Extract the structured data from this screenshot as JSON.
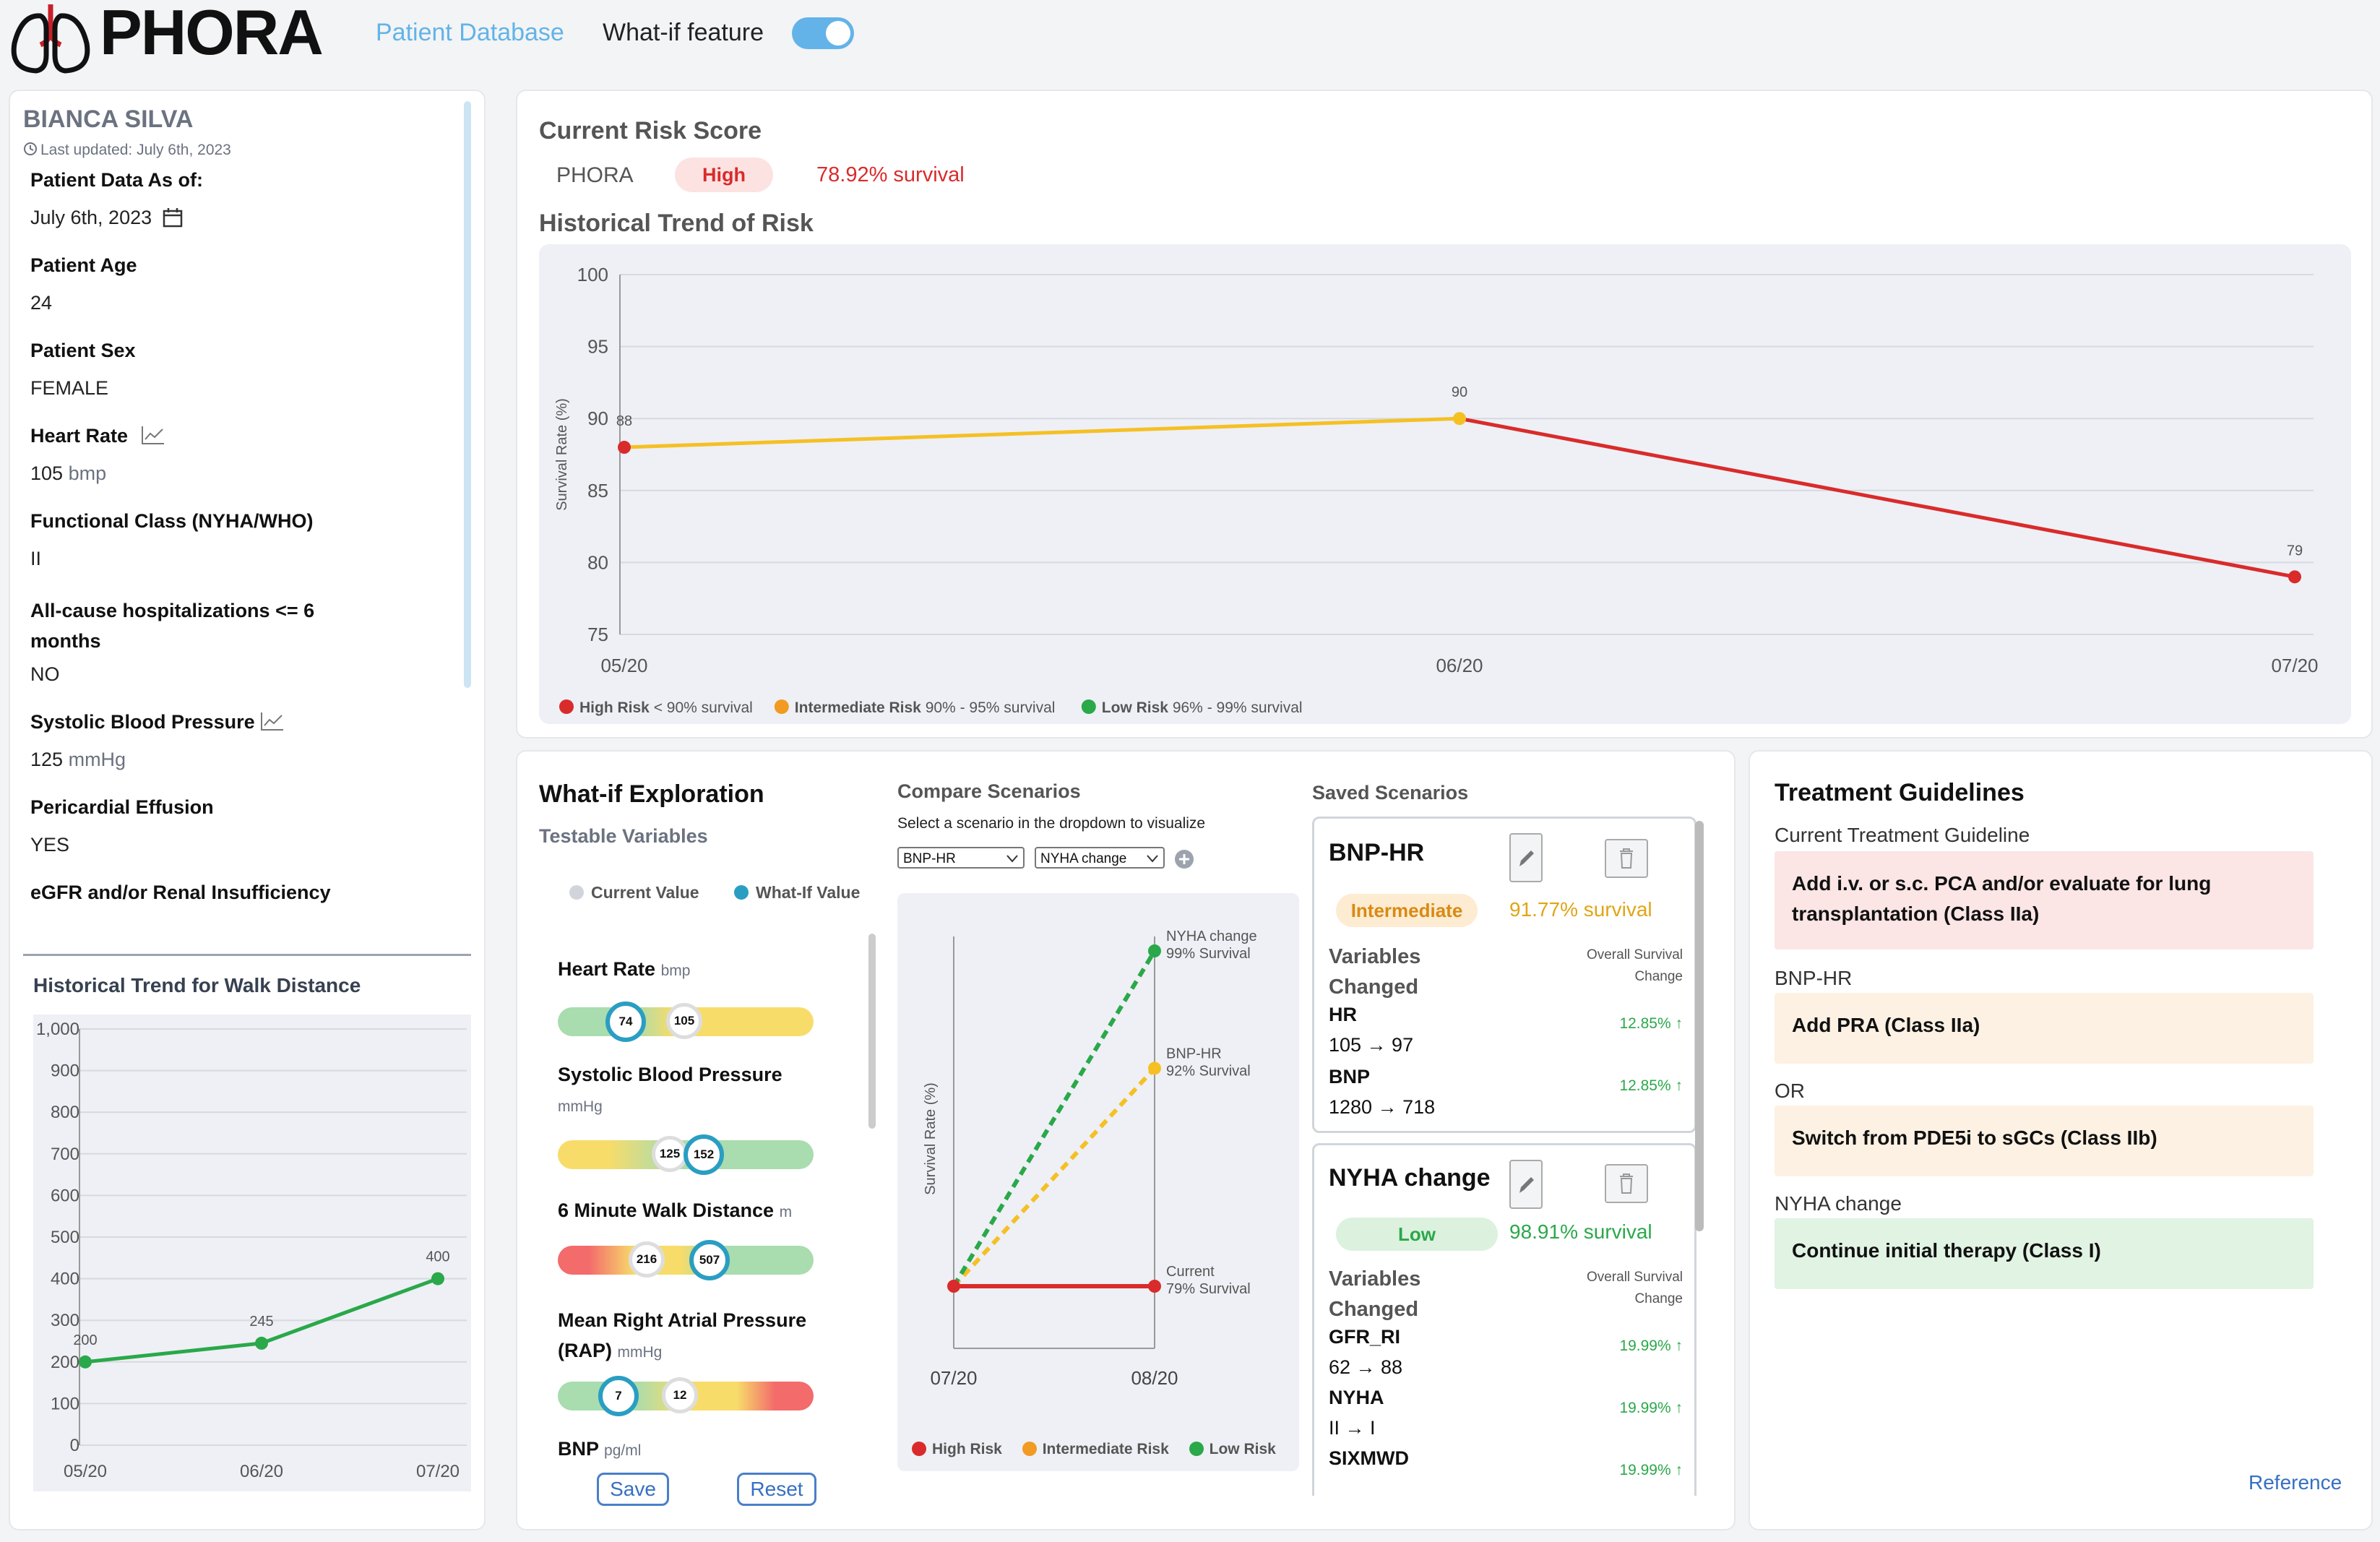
{
  "header": {
    "logo_text": "PHORA",
    "nav_patient_db": "Patient Database",
    "whatif_label": "What-if feature",
    "whatif_enabled": true
  },
  "patient": {
    "name": "BIANCA SILVA",
    "last_updated": "Last updated: July 6th, 2023",
    "fields": {
      "data_as_of_label": "Patient Data As of:",
      "data_as_of_value": "July 6th, 2023",
      "age_label": "Patient Age",
      "age_value": "24",
      "sex_label": "Patient Sex",
      "sex_value": "FEMALE",
      "hr_label": "Heart Rate",
      "hr_value": "105",
      "hr_unit": "bmp",
      "fc_label": "Functional Class (NYHA/WHO)",
      "fc_value": "II",
      "hosp_label": "All-cause hospitalizations <= 6 months",
      "hosp_value": "NO",
      "sbp_label": "Systolic Blood Pressure",
      "sbp_value": "125",
      "sbp_unit": "mmHg",
      "peri_label": "Pericardial Effusion",
      "peri_value": "YES",
      "egfr_label": "eGFR and/or Renal Insufficiency"
    }
  },
  "walk_chart": {
    "title": "Historical Trend for Walk Distance",
    "chart_data": {
      "type": "line",
      "categories": [
        "05/20",
        "06/20",
        "07/20"
      ],
      "values": [
        200,
        245,
        400
      ],
      "ylim": [
        0,
        1000
      ],
      "yticks": [
        "0",
        "100",
        "200",
        "300",
        "400",
        "500",
        "600",
        "700",
        "800",
        "900",
        "1,000"
      ],
      "grid": true,
      "color": "#2aa84a"
    }
  },
  "risk": {
    "title": "Current Risk Score",
    "model": "PHORA",
    "level": "High",
    "survival": "78.92% survival"
  },
  "risk_trend": {
    "title": "Historical Trend of Risk",
    "chart_data": {
      "type": "line",
      "categories": [
        "05/20",
        "06/20",
        "07/20"
      ],
      "values": [
        88,
        90,
        79
      ],
      "ylabel": "Survival Rate (%)",
      "ylim": [
        75,
        100
      ],
      "yticks": [
        "75",
        "80",
        "85",
        "90",
        "95",
        "100"
      ],
      "grid": true
    },
    "legend": [
      {
        "name": "High Risk",
        "range": "< 90% survival",
        "color": "#d92b2b"
      },
      {
        "name": "Intermediate Risk",
        "range": "90% - 95% survival",
        "color": "#f19b23"
      },
      {
        "name": "Low Risk",
        "range": "96% - 99% survival",
        "color": "#2aa84a"
      }
    ]
  },
  "whatif": {
    "title": "What-if Exploration",
    "subtitle": "Testable Variables",
    "legend_current": "Current Value",
    "legend_whatif": "What-If Value",
    "variables": [
      {
        "label": "Heart Rate",
        "unit": "bmp",
        "current": "105",
        "whatif": "74"
      },
      {
        "label": "Systolic Blood Pressure",
        "unit": "mmHg",
        "current": "125",
        "whatif": "152"
      },
      {
        "label": "6 Minute Walk Distance",
        "unit": "m",
        "current": "216",
        "whatif": "507"
      },
      {
        "label": "Mean Right Atrial Pressure (RAP)",
        "unit": "mmHg",
        "current": "12",
        "whatif": "7"
      },
      {
        "label": "BNP",
        "unit": "pg/ml"
      }
    ],
    "save_label": "Save",
    "reset_label": "Reset"
  },
  "compare": {
    "title": "Compare Scenarios",
    "hint": "Select a scenario in the dropdown to visualize",
    "select1": "BNP-HR",
    "select2": "NYHA change",
    "chart_data": {
      "type": "line",
      "categories": [
        "07/20",
        "08/20"
      ],
      "ylabel": "Survival Rate (%)",
      "series": [
        {
          "name": "Current",
          "annotation": "79% Survival",
          "values": [
            79,
            79
          ],
          "color": "#d92b2b"
        },
        {
          "name": "BNP-HR",
          "annotation": "92% Survival",
          "values": [
            79,
            92
          ],
          "color": "#f5c024"
        },
        {
          "name": "NYHA change",
          "annotation": "99% Survival",
          "values": [
            79,
            99
          ],
          "color": "#2aa84a"
        }
      ]
    },
    "legend": [
      {
        "name": "High Risk",
        "color": "#d92b2b"
      },
      {
        "name": "Intermediate Risk",
        "color": "#f19b23"
      },
      {
        "name": "Low Risk",
        "color": "#2aa84a"
      }
    ]
  },
  "saved": {
    "title": "Saved Scenarios",
    "variables_label": "Variables Changed",
    "change_label": "Overall Survival Change",
    "scenarios": [
      {
        "name": "BNP-HR",
        "level": "Intermediate",
        "survival": "91.77% survival",
        "vars": [
          {
            "name": "HR",
            "change": "105 → 97",
            "delta": "12.85% ↑"
          },
          {
            "name": "BNP",
            "change": "1280 → 718",
            "delta": "12.85% ↑"
          }
        ]
      },
      {
        "name": "NYHA change",
        "level": "Low",
        "survival": "98.91% survival",
        "vars": [
          {
            "name": "GFR_RI",
            "change": "62 → 88",
            "delta": "19.99% ↑"
          },
          {
            "name": "NYHA",
            "change": "II → I",
            "delta": "19.99% ↑"
          },
          {
            "name": "SIXMWD",
            "change": "",
            "delta": "19.99% ↑"
          }
        ]
      }
    ]
  },
  "treatment": {
    "title": "Treatment Guidelines",
    "current_label": "Current Treatment Guideline",
    "current_text": "Add i.v. or s.c. PCA and/or evaluate for lung transplantation (Class IIa)",
    "bnp_label": "BNP-HR",
    "bnp_text": "Add PRA (Class IIa)",
    "or_label": "OR",
    "switch_text": "Switch from PDE5i to sGCs (Class IIb)",
    "nyha_label": "NYHA change",
    "nyha_text": "Continue initial therapy (Class I)",
    "reference": "Reference"
  }
}
